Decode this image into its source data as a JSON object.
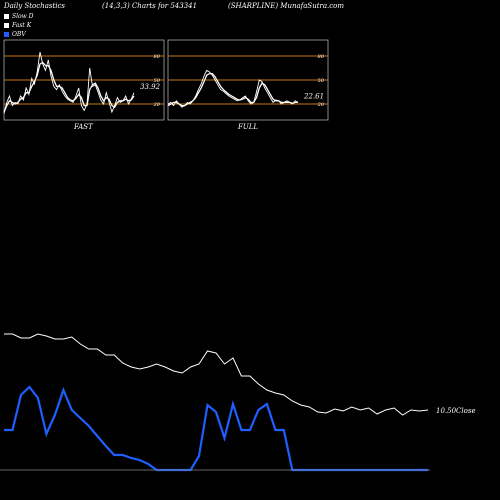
{
  "header": {
    "left": "Daily Stochastics",
    "center": "(14,3,3) Charts for 543341",
    "right": "(SHARPLINE) MunafaSutra.com"
  },
  "legend": [
    {
      "label": "Slow  D",
      "color": "#ffffff"
    },
    {
      "label": "Fast K",
      "color": "#ffffff"
    },
    {
      "label": "OBV",
      "color": "#1f5fff"
    }
  ],
  "chart_data": [
    {
      "type": "line",
      "panel": "FAST",
      "xlabel": "FAST",
      "ylim": [
        0,
        100
      ],
      "levels": [
        20,
        50,
        80
      ],
      "last_value_label": "33.92",
      "series": [
        {
          "values": [
            8,
            22,
            30,
            18,
            22,
            20,
            30,
            25,
            40,
            32,
            52,
            45,
            60,
            85,
            70,
            62,
            75,
            55,
            42,
            38,
            44,
            36,
            30,
            26,
            24,
            22,
            30,
            40,
            18,
            12,
            20,
            65,
            42,
            44,
            35,
            25,
            20,
            34,
            22,
            10,
            18,
            28,
            22,
            24,
            30,
            20,
            26,
            34
          ]
        },
        {
          "values": [
            10,
            18,
            24,
            22,
            20,
            22,
            26,
            28,
            34,
            34,
            42,
            48,
            56,
            70,
            72,
            68,
            68,
            62,
            50,
            42,
            42,
            40,
            34,
            28,
            25,
            24,
            27,
            32,
            28,
            18,
            18,
            38,
            44,
            46,
            40,
            30,
            24,
            28,
            26,
            18,
            16,
            22,
            24,
            24,
            26,
            24,
            25,
            30
          ]
        }
      ]
    },
    {
      "type": "line",
      "panel": "FULL",
      "xlabel": "FULL",
      "ylim": [
        0,
        100
      ],
      "levels": [
        20,
        50,
        80
      ],
      "last_value_label": "22.61",
      "series": [
        {
          "values": [
            20,
            22,
            18,
            24,
            20,
            16,
            18,
            22,
            20,
            24,
            30,
            38,
            45,
            55,
            62,
            60,
            56,
            50,
            44,
            38,
            36,
            33,
            30,
            28,
            26,
            24,
            25,
            28,
            30,
            24,
            20,
            22,
            35,
            50,
            48,
            40,
            34,
            28,
            22,
            25,
            24,
            20,
            22,
            24,
            22,
            20,
            24,
            22
          ]
        },
        {
          "values": [
            18,
            20,
            22,
            22,
            20,
            18,
            18,
            20,
            22,
            24,
            28,
            34,
            40,
            48,
            56,
            58,
            58,
            54,
            48,
            42,
            38,
            35,
            32,
            30,
            28,
            26,
            25,
            26,
            28,
            26,
            22,
            22,
            28,
            40,
            46,
            44,
            38,
            32,
            26,
            24,
            24,
            22,
            22,
            22,
            22,
            21,
            22,
            22
          ]
        }
      ]
    },
    {
      "type": "line",
      "panel": "OBV",
      "series": [
        {
          "name": "Price",
          "color": "#ffffff",
          "end_label": "10.50Close",
          "values": [
            46,
            46,
            42,
            42,
            46,
            44,
            41,
            41,
            43,
            36,
            31,
            31,
            25,
            25,
            17,
            13,
            11,
            13,
            16,
            13,
            9,
            7,
            13,
            16,
            29,
            27,
            16,
            22,
            4,
            4,
            -4,
            -10,
            -13,
            -15,
            -21,
            -25,
            -27,
            -32,
            -33,
            -29,
            -31,
            -27,
            -30,
            -28,
            -34,
            -30,
            -28,
            -35,
            -30,
            -31,
            -30
          ]
        },
        {
          "name": "OBV",
          "color": "#1f5fff",
          "values": [
            -230,
            -230,
            -195,
            -187,
            -198,
            -234,
            -215,
            -190,
            -210,
            -218,
            -226,
            -236,
            -246,
            -255,
            -255,
            -258,
            -260,
            -264,
            -270,
            -270,
            -270,
            -270,
            -270,
            -256,
            -205,
            -212,
            -238,
            -204,
            -230,
            -230,
            -210,
            -204,
            -230,
            -230,
            -270,
            -270,
            -270,
            -270,
            -270,
            -270,
            -270,
            -270,
            -270,
            -270,
            -270,
            -270,
            -270,
            -270,
            -270,
            -270,
            -270
          ]
        }
      ]
    }
  ]
}
